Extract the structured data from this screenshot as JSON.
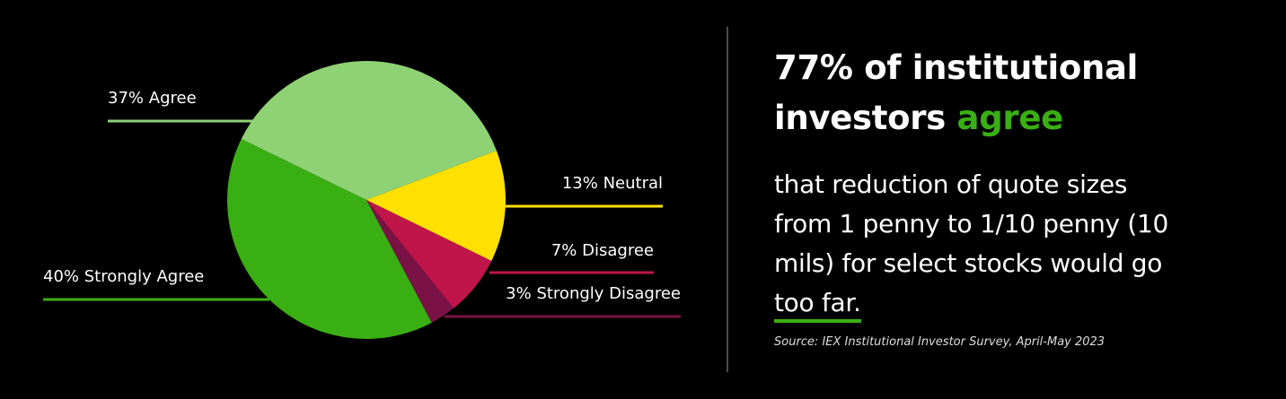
{
  "chart_data": {
    "type": "pie",
    "categories": [
      "Agree",
      "Neutral",
      "Disagree",
      "Strongly Disagree",
      "Strongly Agree"
    ],
    "values": [
      37,
      13,
      7,
      3,
      40
    ],
    "value_labels": [
      "37%",
      "13%",
      "7%",
      "3%",
      "40%"
    ],
    "colors": [
      "#8fd175",
      "#ffe000",
      "#c0154a",
      "#7a1245",
      "#3aaf14"
    ]
  },
  "panel": {
    "headline": [
      "77% of institutional",
      "investors",
      "agree"
    ],
    "body": [
      "that reduction of quote sizes",
      "from 1 penny to 1/10 penny (10",
      "mils) for select stocks would go",
      "too far."
    ],
    "source": "Source: IEX Institutional Investor Survey, April-May 2023"
  }
}
